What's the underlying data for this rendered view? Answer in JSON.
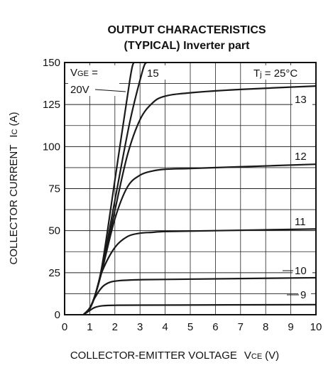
{
  "chart_data": {
    "type": "line",
    "title_line1": "OUTPUT CHARACTERISTICS",
    "title_line2": "(TYPICAL) Inverter part",
    "xlabel": "COLLECTOR-EMITTER VOLTAGE",
    "xlabel_symbol": "V",
    "xlabel_sub": "CE",
    "xlabel_unit": "(V)",
    "ylabel": "COLLECTOR CURRENT",
    "ylabel_symbol": "I",
    "ylabel_sub": "C",
    "ylabel_unit": "(A)",
    "xlim": [
      0,
      10
    ],
    "ylim": [
      0,
      150
    ],
    "x_ticks": [
      "0",
      "1",
      "2",
      "3",
      "4",
      "5",
      "6",
      "7",
      "8",
      "9",
      "10"
    ],
    "y_ticks": [
      "0",
      "25",
      "50",
      "75",
      "100",
      "125",
      "150"
    ],
    "grid": true,
    "vge_label_sym": "V",
    "vge_label_sub": "GE",
    "vge_label_eq": " =",
    "temp_sym": "T",
    "temp_sub": "j",
    "temp_val": " = 25°C",
    "series": [
      {
        "name": "20V",
        "x": [
          0.75,
          1.0,
          1.2,
          1.5,
          2.0,
          2.6,
          2.75
        ],
        "y": [
          0,
          4,
          11,
          30,
          80,
          140,
          150
        ]
      },
      {
        "name": "15",
        "x": [
          0.75,
          1.0,
          1.2,
          1.5,
          2.0,
          2.6,
          3.1,
          3.25
        ],
        "y": [
          0,
          4,
          11,
          28,
          68,
          115,
          145,
          150
        ]
      },
      {
        "name": "13",
        "x": [
          0.75,
          1.0,
          1.2,
          1.5,
          2.0,
          2.5,
          3.0,
          3.5,
          4.0,
          5.0,
          7.0,
          10.0
        ],
        "y": [
          0,
          4,
          11,
          27,
          62,
          95,
          116,
          126,
          130,
          132,
          134,
          136
        ]
      },
      {
        "name": "12",
        "x": [
          0.75,
          1.0,
          1.2,
          1.5,
          2.0,
          2.5,
          3.0,
          3.5,
          4.0,
          5.0,
          7.0,
          10.0
        ],
        "y": [
          0,
          4,
          11,
          27,
          57,
          76,
          83,
          85.5,
          86.5,
          87,
          88,
          89.5
        ]
      },
      {
        "name": "11",
        "x": [
          0.75,
          1.0,
          1.2,
          1.5,
          2.0,
          2.5,
          3.0,
          3.5,
          4.0,
          6.0,
          10.0
        ],
        "y": [
          0,
          4,
          11,
          26,
          40,
          46.5,
          48.5,
          49,
          49.5,
          50,
          51
        ]
      },
      {
        "name": "10",
        "x": [
          0.75,
          1.0,
          1.2,
          1.5,
          1.8,
          2.2,
          3.0,
          4.0,
          10.0
        ],
        "y": [
          0,
          3.5,
          10,
          16.5,
          19.3,
          20.3,
          20.8,
          21,
          22
        ]
      },
      {
        "name": "9",
        "x": [
          0.75,
          1.0,
          1.2,
          1.5,
          2.0,
          3.0,
          10.0
        ],
        "y": [
          0,
          2.5,
          4.3,
          5.3,
          5.6,
          5.7,
          6
        ]
      }
    ]
  }
}
